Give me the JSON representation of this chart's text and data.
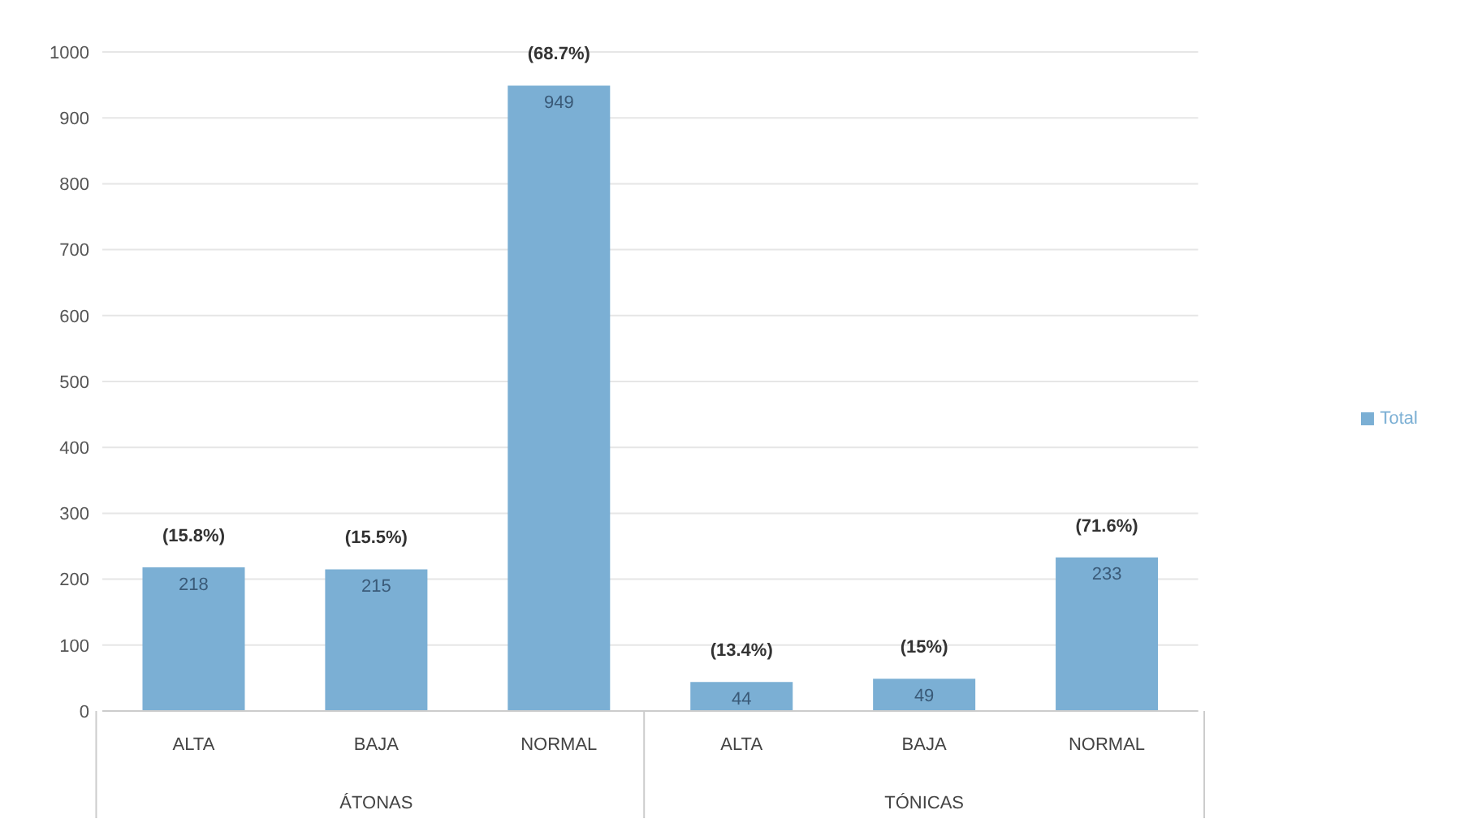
{
  "chart_data": {
    "type": "bar",
    "categories": [
      "ALTA",
      "BAJA",
      "NORMAL",
      "ALTA",
      "BAJA",
      "NORMAL"
    ],
    "series": [
      {
        "name": "Total",
        "color": "#7bafd4",
        "values": [
          218,
          215,
          949,
          44,
          49,
          233
        ]
      }
    ],
    "ylim": [
      0,
      1000
    ],
    "yticks": [
      0,
      100,
      200,
      300,
      400,
      500,
      600,
      700,
      800,
      900,
      1000
    ],
    "grid": "y",
    "legend": "right",
    "data_labels": true,
    "annotations": [
      "ÁTONAS",
      "TÓNICAS",
      "(15.8%)",
      "(15.5%)",
      "(68.7%)",
      "(13.4%)",
      "(15%)",
      "(71.6%)"
    ]
  }
}
